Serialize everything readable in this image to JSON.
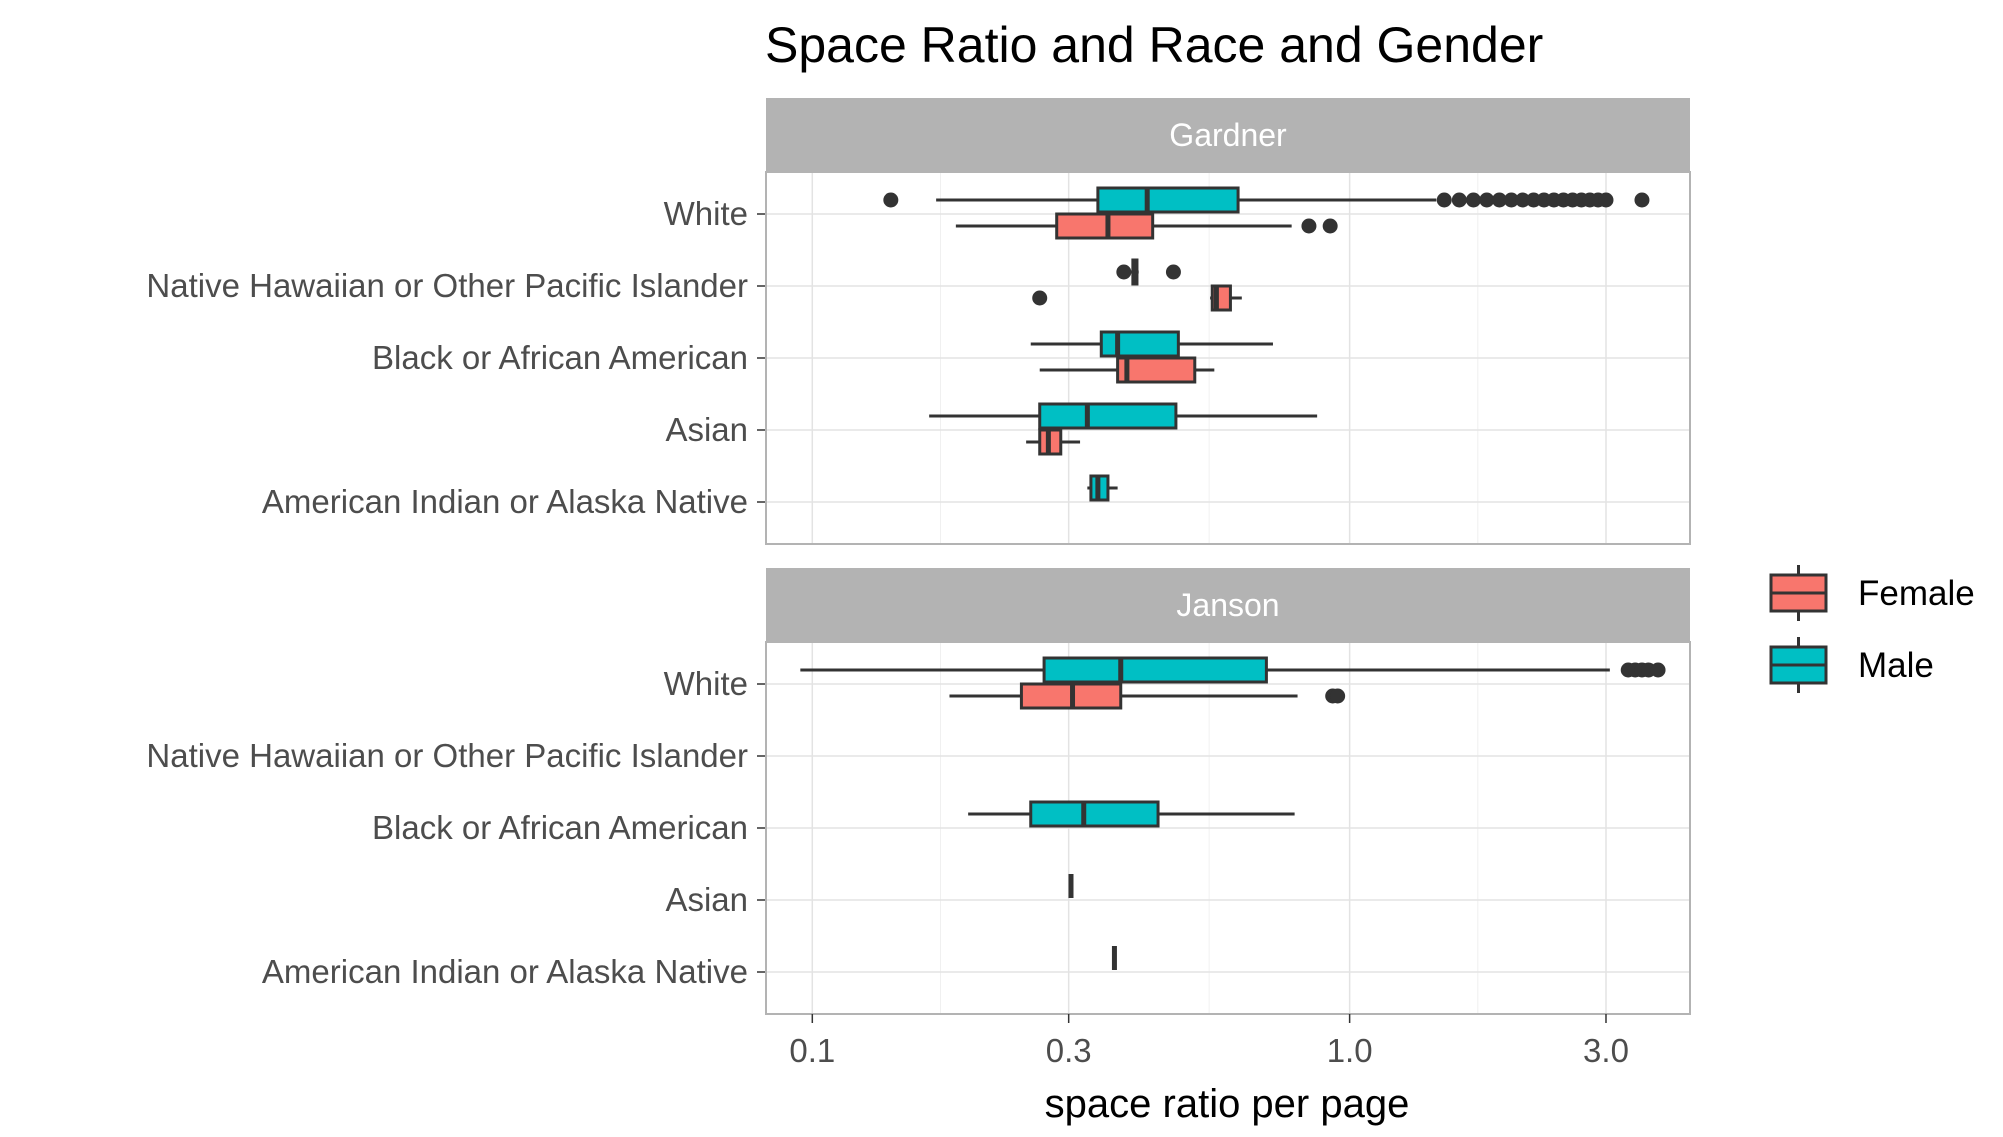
{
  "chart_data": {
    "type": "boxplot",
    "title": "Space Ratio and Race and Gender",
    "xlabel": "space ratio per page",
    "ylabel": "",
    "x_scale": "log10",
    "xlim": [
      0.082,
      4.3
    ],
    "x_ticks": [
      {
        "value": 0.1,
        "label": "0.1"
      },
      {
        "value": 0.3,
        "label": "0.3"
      },
      {
        "value": 1.0,
        "label": "1.0"
      },
      {
        "value": 3.0,
        "label": "3.0"
      }
    ],
    "grid": true,
    "legend": {
      "position": "right",
      "entries": [
        {
          "name": "Female",
          "color": "#F8766D"
        },
        {
          "name": "Male",
          "color": "#00BFC4"
        }
      ]
    },
    "categories": [
      "White",
      "Native Hawaiian or Other Pacific Islander",
      "Black or African American",
      "Asian",
      "American Indian or Alaska Native"
    ],
    "panels": [
      {
        "name": "Gardner",
        "boxes": [
          {
            "category": "White",
            "group": "Male",
            "wlo": 0.17,
            "q1": 0.34,
            "med": 0.42,
            "q3": 0.62,
            "whi": 1.45,
            "outliers": [
              0.14,
              1.5,
              1.6,
              1.7,
              1.8,
              1.9,
              2.0,
              2.1,
              2.2,
              2.3,
              2.4,
              2.5,
              2.6,
              2.7,
              2.8,
              2.9,
              3.0,
              3.5
            ]
          },
          {
            "category": "White",
            "group": "Female",
            "wlo": 0.185,
            "q1": 0.285,
            "med": 0.355,
            "q3": 0.43,
            "whi": 0.78,
            "outliers": [
              0.84,
              0.92
            ]
          },
          {
            "category": "Native Hawaiian or Other Pacific Islander",
            "group": "Male",
            "wlo": 0.39,
            "q1": 0.395,
            "med": 0.398,
            "q3": 0.402,
            "whi": 0.405,
            "outliers": [
              0.38,
              0.47
            ]
          },
          {
            "category": "Native Hawaiian or Other Pacific Islander",
            "group": "Female",
            "wlo": 0.55,
            "q1": 0.555,
            "med": 0.565,
            "q3": 0.6,
            "whi": 0.63,
            "outliers": [
              0.265
            ]
          },
          {
            "category": "Black or African American",
            "group": "Male",
            "wlo": 0.255,
            "q1": 0.345,
            "med": 0.37,
            "q3": 0.48,
            "whi": 0.72
          },
          {
            "category": "Black or African American",
            "group": "Female",
            "wlo": 0.265,
            "q1": 0.37,
            "med": 0.385,
            "q3": 0.515,
            "whi": 0.56
          },
          {
            "category": "Asian",
            "group": "Male",
            "wlo": 0.165,
            "q1": 0.265,
            "med": 0.325,
            "q3": 0.475,
            "whi": 0.87
          },
          {
            "category": "Asian",
            "group": "Female",
            "wlo": 0.25,
            "q1": 0.265,
            "med": 0.275,
            "q3": 0.29,
            "whi": 0.315
          },
          {
            "category": "American Indian or Alaska Native",
            "group": "Male",
            "wlo": 0.325,
            "q1": 0.33,
            "med": 0.34,
            "q3": 0.355,
            "whi": 0.37
          }
        ]
      },
      {
        "name": "Janson",
        "boxes": [
          {
            "category": "White",
            "group": "Male",
            "wlo": 0.095,
            "q1": 0.27,
            "med": 0.375,
            "q3": 0.7,
            "whi": 3.05,
            "outliers": [
              3.3,
              3.4,
              3.5,
              3.6,
              3.75
            ]
          },
          {
            "category": "White",
            "group": "Female",
            "wlo": 0.18,
            "q1": 0.245,
            "med": 0.305,
            "q3": 0.375,
            "whi": 0.8,
            "outliers": [
              0.93,
              0.95
            ]
          },
          {
            "category": "Black or African American",
            "group": "Male",
            "wlo": 0.195,
            "q1": 0.255,
            "med": 0.32,
            "q3": 0.44,
            "whi": 0.79
          },
          {
            "category": "Asian",
            "group": "Male",
            "wlo": 0.303,
            "q1": 0.303,
            "med": 0.303,
            "q3": 0.303,
            "whi": 0.303
          },
          {
            "category": "American Indian or Alaska Native",
            "group": "Male",
            "wlo": 0.365,
            "q1": 0.365,
            "med": 0.365,
            "q3": 0.365,
            "whi": 0.365
          }
        ]
      }
    ]
  }
}
